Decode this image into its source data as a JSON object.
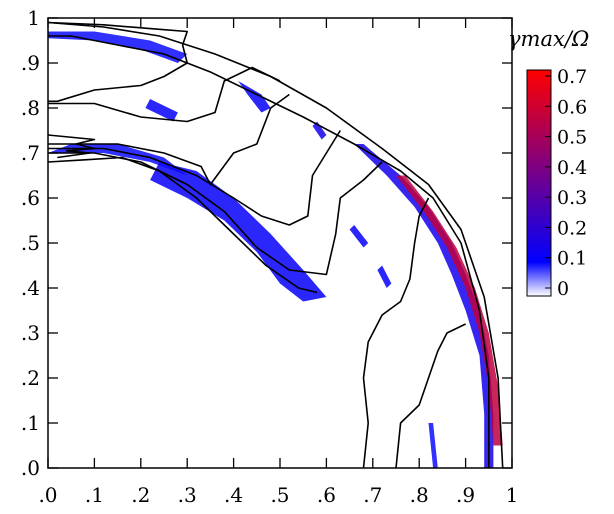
{
  "chart_data": {
    "type": "heatmap",
    "title": "",
    "xlabel": "",
    "ylabel": "",
    "xlim": [
      0,
      1
    ],
    "ylim": [
      0,
      1
    ],
    "grid": false,
    "x_ticks": [
      ".0",
      ".1",
      ".2",
      ".3",
      ".4",
      ".5",
      ".6",
      ".7",
      ".8",
      ".9",
      "1"
    ],
    "y_ticks": [
      ".0",
      ".1",
      ".2",
      ".3",
      ".4",
      ".5",
      ".6",
      ".7",
      ".8",
      ".9",
      "1"
    ],
    "colorbar": {
      "label": "γmax/Ω",
      "ticks": [
        "0",
        "0.1",
        "0.2",
        "0.3",
        "0.4",
        "0.5",
        "0.6",
        "0.7"
      ],
      "range": [
        0,
        0.7
      ],
      "colors": [
        "#ffffff",
        "#0000ff",
        "#ff0000"
      ]
    },
    "colors": {
      "contour": "#000000",
      "low": "#1a1aff",
      "high": "#e0002a"
    },
    "contours": [
      [
        [
          0.95,
          0.0
        ],
        [
          0.95,
          0.2
        ],
        [
          0.93,
          0.35
        ],
        [
          0.89,
          0.5
        ],
        [
          0.83,
          0.6
        ],
        [
          0.76,
          0.66
        ],
        [
          0.66,
          0.72
        ],
        [
          0.55,
          0.78
        ],
        [
          0.45,
          0.83
        ],
        [
          0.35,
          0.88
        ],
        [
          0.25,
          0.92
        ],
        [
          0.15,
          0.94
        ],
        [
          0.05,
          0.96
        ],
        [
          0.0,
          0.96
        ]
      ],
      [
        [
          0.98,
          0.0
        ],
        [
          0.97,
          0.2
        ],
        [
          0.94,
          0.38
        ],
        [
          0.89,
          0.53
        ],
        [
          0.82,
          0.63
        ],
        [
          0.72,
          0.71
        ],
        [
          0.6,
          0.8
        ],
        [
          0.48,
          0.87
        ],
        [
          0.36,
          0.92
        ],
        [
          0.24,
          0.96
        ],
        [
          0.12,
          0.98
        ],
        [
          0.0,
          0.99
        ]
      ],
      [
        [
          0.0,
          0.99
        ],
        [
          0.12,
          0.985
        ],
        [
          0.24,
          0.975
        ],
        [
          0.3,
          0.97
        ],
        [
          0.29,
          0.94
        ],
        [
          0.3,
          0.9
        ],
        [
          0.25,
          0.87
        ],
        [
          0.2,
          0.85
        ],
        [
          0.1,
          0.84
        ],
        [
          0.02,
          0.815
        ],
        [
          0.0,
          0.815
        ]
      ],
      [
        [
          0.0,
          0.81
        ],
        [
          0.1,
          0.81
        ],
        [
          0.2,
          0.78
        ],
        [
          0.3,
          0.77
        ],
        [
          0.36,
          0.79
        ],
        [
          0.38,
          0.86
        ],
        [
          0.44,
          0.89
        ],
        [
          0.5,
          0.86
        ]
      ],
      [
        [
          0.0,
          0.72
        ],
        [
          0.15,
          0.72
        ],
        [
          0.25,
          0.7
        ],
        [
          0.33,
          0.67
        ],
        [
          0.35,
          0.63
        ],
        [
          0.4,
          0.7
        ],
        [
          0.45,
          0.72
        ],
        [
          0.48,
          0.8
        ],
        [
          0.52,
          0.83
        ]
      ],
      [
        [
          0.0,
          0.71
        ],
        [
          0.12,
          0.71
        ],
        [
          0.22,
          0.69
        ],
        [
          0.32,
          0.65
        ],
        [
          0.4,
          0.6
        ],
        [
          0.46,
          0.56
        ],
        [
          0.52,
          0.54
        ],
        [
          0.56,
          0.56
        ],
        [
          0.57,
          0.65
        ],
        [
          0.6,
          0.7
        ],
        [
          0.63,
          0.75
        ]
      ],
      [
        [
          0.0,
          0.7
        ],
        [
          0.1,
          0.7
        ],
        [
          0.2,
          0.68
        ],
        [
          0.3,
          0.63
        ],
        [
          0.38,
          0.57
        ],
        [
          0.45,
          0.49
        ],
        [
          0.52,
          0.44
        ],
        [
          0.6,
          0.43
        ],
        [
          0.62,
          0.52
        ],
        [
          0.63,
          0.6
        ],
        [
          0.68,
          0.64
        ],
        [
          0.72,
          0.68
        ]
      ],
      [
        [
          0.0,
          0.68
        ],
        [
          0.08,
          0.685
        ],
        [
          0.16,
          0.69
        ],
        [
          0.24,
          0.66
        ],
        [
          0.32,
          0.6
        ],
        [
          0.4,
          0.52
        ],
        [
          0.47,
          0.45
        ],
        [
          0.54,
          0.4
        ],
        [
          0.58,
          0.39
        ]
      ],
      [
        [
          0.68,
          0.0
        ],
        [
          0.69,
          0.1
        ],
        [
          0.68,
          0.2
        ],
        [
          0.69,
          0.28
        ],
        [
          0.72,
          0.34
        ],
        [
          0.76,
          0.37
        ],
        [
          0.78,
          0.42
        ],
        [
          0.79,
          0.5
        ],
        [
          0.8,
          0.56
        ],
        [
          0.82,
          0.6
        ]
      ],
      [
        [
          0.75,
          0.0
        ],
        [
          0.76,
          0.1
        ],
        [
          0.8,
          0.14
        ],
        [
          0.82,
          0.2
        ],
        [
          0.84,
          0.26
        ],
        [
          0.86,
          0.3
        ],
        [
          0.9,
          0.32
        ]
      ],
      [
        [
          0.0,
          0.74
        ],
        [
          0.1,
          0.73
        ],
        [
          0.06,
          0.72
        ],
        [
          0.1,
          0.71
        ],
        [
          0.04,
          0.705
        ],
        [
          0.09,
          0.7
        ],
        [
          0.02,
          0.69
        ]
      ]
    ],
    "patches": [
      {
        "points": [
          [
            0.22,
            0.64
          ],
          [
            0.3,
            0.6
          ],
          [
            0.38,
            0.55
          ],
          [
            0.45,
            0.48
          ],
          [
            0.5,
            0.41
          ],
          [
            0.55,
            0.37
          ],
          [
            0.6,
            0.38
          ],
          [
            0.55,
            0.44
          ],
          [
            0.48,
            0.52
          ],
          [
            0.4,
            0.6
          ],
          [
            0.32,
            0.66
          ],
          [
            0.24,
            0.68
          ]
        ],
        "value": 0.12
      },
      {
        "points": [
          [
            0.0,
            0.7
          ],
          [
            0.12,
            0.7
          ],
          [
            0.22,
            0.68
          ],
          [
            0.3,
            0.65
          ],
          [
            0.25,
            0.69
          ],
          [
            0.15,
            0.72
          ],
          [
            0.05,
            0.72
          ]
        ],
        "value": 0.1
      },
      {
        "points": [
          [
            0.68,
            0.72
          ],
          [
            0.76,
            0.65
          ],
          [
            0.82,
            0.58
          ],
          [
            0.87,
            0.5
          ],
          [
            0.9,
            0.43
          ],
          [
            0.93,
            0.35
          ],
          [
            0.95,
            0.25
          ],
          [
            0.96,
            0.12
          ],
          [
            0.96,
            0.0
          ],
          [
            0.94,
            0.0
          ],
          [
            0.94,
            0.12
          ],
          [
            0.93,
            0.25
          ],
          [
            0.9,
            0.35
          ],
          [
            0.87,
            0.43
          ],
          [
            0.84,
            0.5
          ],
          [
            0.79,
            0.58
          ],
          [
            0.73,
            0.65
          ],
          [
            0.66,
            0.72
          ]
        ],
        "value": 0.15
      },
      {
        "points": [
          [
            0.77,
            0.65
          ],
          [
            0.83,
            0.57
          ],
          [
            0.88,
            0.49
          ],
          [
            0.92,
            0.4
          ],
          [
            0.95,
            0.3
          ],
          [
            0.97,
            0.18
          ],
          [
            0.98,
            0.05
          ],
          [
            0.96,
            0.05
          ],
          [
            0.95,
            0.18
          ],
          [
            0.93,
            0.3
          ],
          [
            0.9,
            0.4
          ],
          [
            0.86,
            0.49
          ],
          [
            0.81,
            0.57
          ],
          [
            0.75,
            0.65
          ]
        ],
        "value": 0.55
      },
      {
        "points": [
          [
            0.0,
            0.97
          ],
          [
            0.1,
            0.97
          ],
          [
            0.22,
            0.95
          ],
          [
            0.3,
            0.92
          ],
          [
            0.28,
            0.9
          ],
          [
            0.2,
            0.93
          ],
          [
            0.1,
            0.95
          ],
          [
            0.0,
            0.955
          ]
        ],
        "value": 0.1
      },
      {
        "points": [
          [
            0.22,
            0.82
          ],
          [
            0.28,
            0.79
          ],
          [
            0.27,
            0.77
          ],
          [
            0.21,
            0.8
          ]
        ],
        "value": 0.12
      },
      {
        "points": [
          [
            0.41,
            0.86
          ],
          [
            0.46,
            0.83
          ],
          [
            0.48,
            0.8
          ],
          [
            0.46,
            0.79
          ],
          [
            0.43,
            0.83
          ]
        ],
        "value": 0.12
      },
      {
        "points": [
          [
            0.58,
            0.77
          ],
          [
            0.6,
            0.74
          ],
          [
            0.59,
            0.73
          ],
          [
            0.57,
            0.76
          ]
        ],
        "value": 0.15
      },
      {
        "points": [
          [
            0.66,
            0.54
          ],
          [
            0.69,
            0.5
          ],
          [
            0.68,
            0.49
          ],
          [
            0.65,
            0.53
          ]
        ],
        "value": 0.12
      },
      {
        "points": [
          [
            0.72,
            0.45
          ],
          [
            0.74,
            0.41
          ],
          [
            0.73,
            0.4
          ],
          [
            0.71,
            0.44
          ]
        ],
        "value": 0.12
      },
      {
        "points": [
          [
            0.83,
            0.1
          ],
          [
            0.84,
            0.0
          ],
          [
            0.83,
            0.0
          ],
          [
            0.82,
            0.1
          ]
        ],
        "value": 0.1
      }
    ]
  }
}
